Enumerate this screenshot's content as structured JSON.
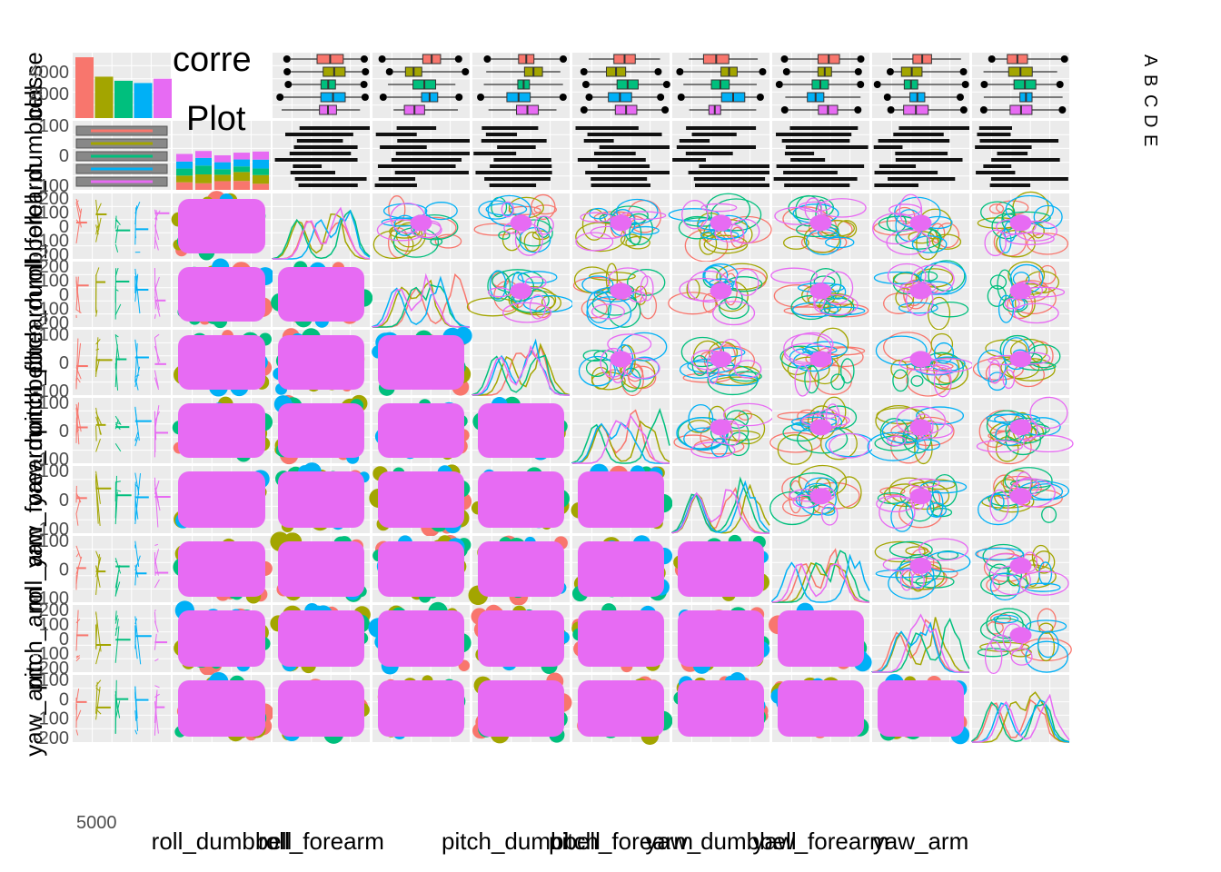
{
  "chart_data": {
    "type": "scatter",
    "title": "correlation Plot",
    "title_visible_fragments": [
      "corre",
      "Plot"
    ],
    "variables": [
      "classe",
      "roll_dumbbell",
      "roll_forearm",
      "pitch_dumbbell",
      "pitch_forearm",
      "yaw_dumbbell",
      "yaw_forearm",
      "roll_arm",
      "pitch_arm",
      "yaw_arm"
    ],
    "row_labels": [
      "classe",
      "roll_dumbbell",
      "roll_forearm",
      "pitch_dumbbell",
      "pitch_forearm",
      "yaw_dumbbell",
      "yaw_forearm",
      "roll_arm",
      "pitch_arm",
      "yaw_arm"
    ],
    "x_axis_labels_visible": [
      "roll_dumbbell",
      "roll_forearm",
      "pitch_dumbbell",
      "pitch_forearm",
      "yaw_dumbbell",
      "yaw_forearm",
      "yaw_arm"
    ],
    "legend_categories": [
      "A",
      "B",
      "C",
      "D",
      "E"
    ],
    "legend_placement": "right",
    "series_colors": [
      "#F8766D",
      "#A3A500",
      "#00BF7D",
      "#00B0F6",
      "#E76BF3"
    ],
    "classe_counts": [
      5580,
      3797,
      3422,
      3216,
      3607
    ],
    "classe_yticks": [
      "4000",
      "2000"
    ],
    "row_yticks": {
      "roll_dumbbell": [
        "100",
        "0",
        "-100"
      ],
      "roll_forearm": [
        "200",
        "100",
        "0",
        "-100",
        "-200"
      ],
      "pitch_dumbbell": [
        "200",
        "100",
        "0",
        "-100",
        "-200"
      ],
      "pitch_forearm": [
        "100",
        "0",
        "-100"
      ],
      "yaw_dumbbell": [
        "100",
        "0",
        "-100"
      ],
      "yaw_forearm": [
        "100",
        "0",
        "-100"
      ],
      "roll_arm": [
        "100",
        "0",
        "-100"
      ],
      "pitch_arm": [
        "200",
        "100",
        "0",
        "-100",
        "-200"
      ],
      "yaw_arm": [
        "100",
        "0",
        "-100",
        "-200"
      ]
    },
    "classe_xtick": "5000",
    "panel_types": {
      "diagonal": "density",
      "upper": "density2d",
      "lower": "scatter",
      "first_column": "histogram",
      "first_row": "boxplot"
    },
    "grid": true,
    "panel_background": "#EBEBEB",
    "grid_color": "#FFFFFF"
  }
}
